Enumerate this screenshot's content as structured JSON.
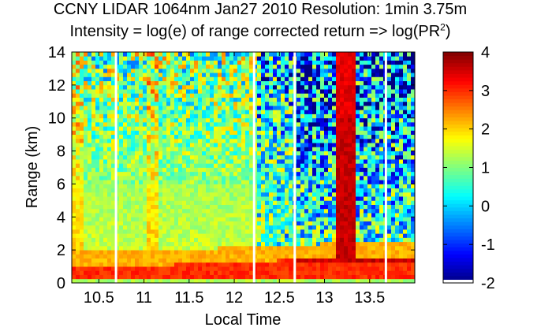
{
  "title_line1": "CCNY LIDAR 1064nm Jan27 2010 Resolution: 1min 3.75m",
  "title_line2_prefix": "Intensity = log(e) of range corrected return => log(PR",
  "title_line2_sup": "2",
  "title_line2_suffix": ")",
  "chart_data": {
    "type": "heatmap",
    "title": "CCNY LIDAR 1064nm Jan27 2010 Resolution: 1min 3.75m",
    "subtitle": "Intensity = log(e) of range corrected return => log(PR2)",
    "xlabel": "Local Time",
    "ylabel": "Range (km)",
    "xlim": [
      10.2,
      14.0
    ],
    "ylim": [
      0,
      14
    ],
    "xticks": [
      "10.5",
      "11",
      "11.5",
      "12",
      "12.5",
      "13",
      "13.5"
    ],
    "xtick_values": [
      10.5,
      11,
      11.5,
      12,
      12.5,
      13,
      13.5
    ],
    "yticks": [
      "0",
      "2",
      "4",
      "6",
      "8",
      "10",
      "12",
      "14"
    ],
    "ytick_values": [
      0,
      2,
      4,
      6,
      8,
      10,
      12,
      14
    ],
    "colorbar": {
      "ticks": [
        "-2",
        "-1",
        "0",
        "1",
        "2",
        "3",
        "4"
      ],
      "tick_values": [
        -2,
        -1,
        0,
        1,
        2,
        3,
        4
      ],
      "range": [
        -2,
        4
      ],
      "colormap": "jet"
    },
    "data_gaps_local_time": [
      10.69,
      12.22,
      12.67,
      13.68
    ],
    "features": {
      "boundary_layer_top_km": [
        1.0,
        1.05,
        1.1,
        1.2,
        1.3,
        1.45,
        1.5,
        1.55,
        1.5
      ],
      "boundary_layer_time": [
        10.2,
        10.7,
        11.2,
        11.7,
        12.2,
        12.7,
        13.2,
        13.7,
        14.0
      ],
      "cloud_plume_time_range": [
        13.12,
        13.36
      ],
      "cloud_plume_value": 3.6
    }
  }
}
